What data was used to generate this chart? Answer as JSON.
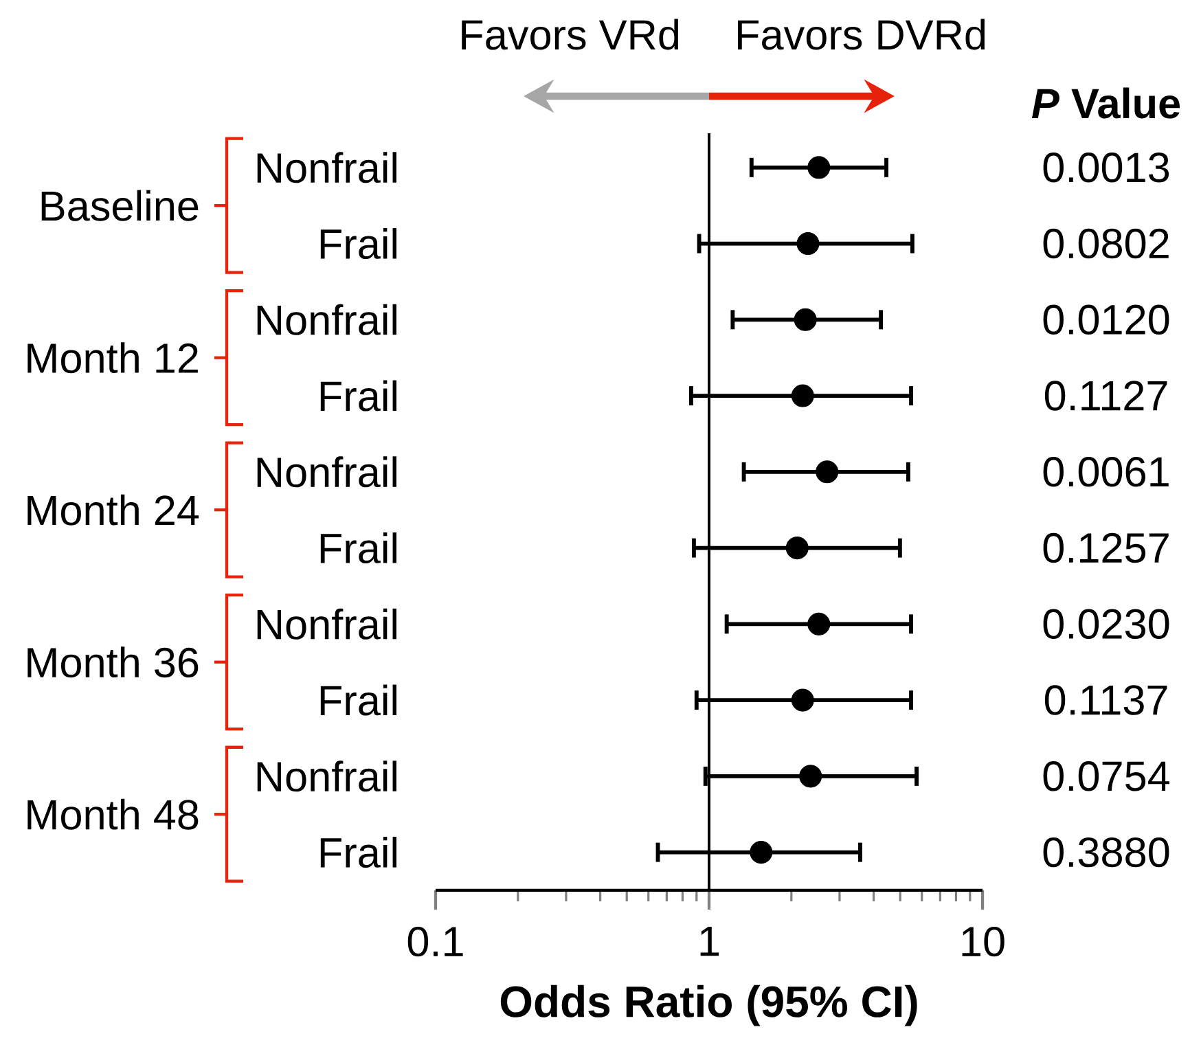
{
  "chart_data": {
    "type": "scatter",
    "orientation": "horizontal",
    "categories": [
      "Nonfrail",
      "Frail",
      "Nonfrail",
      "Frail",
      "Nonfrail",
      "Frail",
      "Nonfrail",
      "Frail",
      "Nonfrail",
      "Frail"
    ],
    "values": [
      2.52,
      2.3,
      2.25,
      2.2,
      2.7,
      2.1,
      2.52,
      2.2,
      2.35,
      1.55
    ],
    "errors": [
      [
        1.43,
        4.45
      ],
      [
        0.92,
        5.54
      ],
      [
        1.22,
        4.25
      ],
      [
        0.86,
        5.48
      ],
      [
        1.34,
        5.35
      ],
      [
        0.88,
        4.99
      ],
      [
        1.16,
        5.48
      ],
      [
        0.9,
        5.48
      ],
      [
        0.97,
        5.74
      ],
      [
        0.65,
        3.57
      ]
    ],
    "color": "#000000",
    "marker": "circle",
    "log": "x",
    "xlim": [
      0.1,
      10
    ],
    "xticks": [
      0.1,
      1,
      10
    ],
    "xlabel": "Odds Ratio (95% CI)",
    "ref_lines": [
      {
        "axis": "x",
        "value": 1
      }
    ],
    "annotations": [
      "Favors VRd",
      "Favors DVRd",
      "*P* Value",
      "Baseline",
      "Month 12",
      "Month 24",
      "Month 36",
      "Month 48",
      "0.0013",
      "0.0802",
      "0.0120",
      "0.1127",
      "0.0061",
      "0.1257",
      "0.0230",
      "0.1137",
      "0.0754",
      "0.3880"
    ]
  }
}
